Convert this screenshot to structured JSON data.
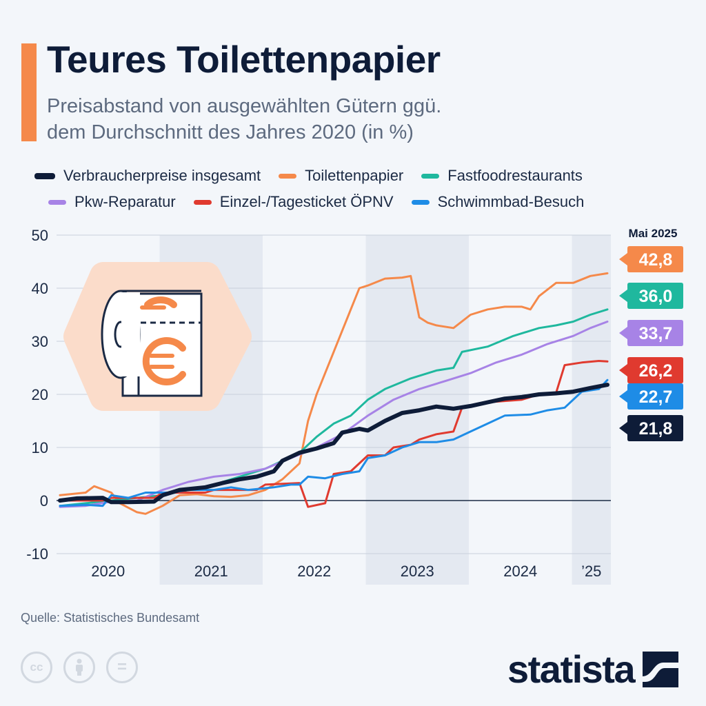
{
  "header": {
    "title": "Teures Toilettenpapier",
    "subtitle_line1": "Preisabstand von ausgewählten Gütern ggü.",
    "subtitle_line2": "dem Durchschnitt des Jahres 2020 (in %)"
  },
  "legend": [
    {
      "label": "Verbraucherpreise insgesamt",
      "color": "#0e1c38"
    },
    {
      "label": "Toilettenpapier",
      "color": "#f5894a"
    },
    {
      "label": "Fastfoodrestaurants",
      "color": "#1fb89e"
    },
    {
      "label": "Pkw-Reparatur",
      "color": "#a783e6"
    },
    {
      "label": "Einzel-/Tagesticket ÖPNV",
      "color": "#e03a2f"
    },
    {
      "label": "Schwimmbad-Besuch",
      "color": "#1e8ce6"
    }
  ],
  "end_label_header": "Mai 2025",
  "icons": {
    "illustration": "toilet-paper-euro-icon",
    "license": [
      "cc-icon",
      "attribution-icon",
      "no-derivatives-icon"
    ],
    "brand": "statista-logo"
  },
  "footer": {
    "source": "Quelle: Statistisches Bundesamt",
    "brand": "statista",
    "cc_labels": [
      "cc",
      "",
      "="
    ]
  },
  "chart_data": {
    "type": "line",
    "x_unit": "month",
    "x_start": "2020-01",
    "x_end": "2025-05",
    "x_tick_labels": [
      "2020",
      "2021",
      "2022",
      "2023",
      "2024",
      "’25"
    ],
    "ylim": [
      -10,
      50
    ],
    "y_ticks": [
      -10,
      0,
      10,
      20,
      30,
      40,
      50
    ],
    "y_tick_labels": [
      "-10",
      "0",
      "10",
      "20",
      "30",
      "40",
      "50"
    ],
    "ylabel": "",
    "xlabel": "",
    "shaded_years": [
      "2021",
      "2023",
      "2025"
    ],
    "series": [
      {
        "name": "Toilettenpapier",
        "color": "#f5894a",
        "end_label": "42,8",
        "points": [
          [
            "2020-01",
            1
          ],
          [
            "2020-04",
            1.5
          ],
          [
            "2020-05",
            2.7
          ],
          [
            "2020-07",
            1.5
          ],
          [
            "2020-08",
            -0.5
          ],
          [
            "2020-10",
            -2.2
          ],
          [
            "2020-11",
            -2.5
          ],
          [
            "2021-01",
            -1
          ],
          [
            "2021-03",
            1
          ],
          [
            "2021-05",
            1.2
          ],
          [
            "2021-07",
            0.8
          ],
          [
            "2021-09",
            0.7
          ],
          [
            "2021-11",
            1
          ],
          [
            "2022-01",
            2
          ],
          [
            "2022-03",
            4
          ],
          [
            "2022-05",
            7
          ],
          [
            "2022-06",
            15
          ],
          [
            "2022-07",
            20
          ],
          [
            "2022-08",
            24
          ],
          [
            "2022-09",
            28
          ],
          [
            "2022-10",
            32
          ],
          [
            "2022-12",
            40
          ],
          [
            "2023-01",
            40.5
          ],
          [
            "2023-03",
            41.8
          ],
          [
            "2023-05",
            42
          ],
          [
            "2023-06",
            42.3
          ],
          [
            "2023-07",
            34.5
          ],
          [
            "2023-08",
            33.5
          ],
          [
            "2023-09",
            33
          ],
          [
            "2023-11",
            32.5
          ],
          [
            "2024-01",
            35
          ],
          [
            "2024-03",
            36
          ],
          [
            "2024-05",
            36.5
          ],
          [
            "2024-07",
            36.5
          ],
          [
            "2024-08",
            36
          ],
          [
            "2024-09",
            38.5
          ],
          [
            "2024-11",
            41
          ],
          [
            "2025-01",
            41
          ],
          [
            "2025-03",
            42.3
          ],
          [
            "2025-05",
            42.8
          ]
        ]
      },
      {
        "name": "Fastfoodrestaurants",
        "color": "#1fb89e",
        "end_label": "36,0",
        "points": [
          [
            "2020-01",
            -1
          ],
          [
            "2020-04",
            -0.5
          ],
          [
            "2020-07",
            0
          ],
          [
            "2020-10",
            0.5
          ],
          [
            "2021-01",
            1
          ],
          [
            "2021-04",
            2
          ],
          [
            "2021-07",
            3
          ],
          [
            "2021-10",
            4.5
          ],
          [
            "2022-01",
            6
          ],
          [
            "2022-03",
            7.5
          ],
          [
            "2022-05",
            9
          ],
          [
            "2022-07",
            12
          ],
          [
            "2022-09",
            14.5
          ],
          [
            "2022-11",
            16
          ],
          [
            "2023-01",
            19
          ],
          [
            "2023-03",
            21
          ],
          [
            "2023-06",
            23
          ],
          [
            "2023-09",
            24.5
          ],
          [
            "2023-11",
            25
          ],
          [
            "2023-12",
            28
          ],
          [
            "2024-03",
            29
          ],
          [
            "2024-06",
            31
          ],
          [
            "2024-09",
            32.5
          ],
          [
            "2024-11",
            33
          ],
          [
            "2025-01",
            33.7
          ],
          [
            "2025-03",
            35
          ],
          [
            "2025-05",
            36
          ]
        ]
      },
      {
        "name": "Pkw-Reparatur",
        "color": "#a783e6",
        "end_label": "33,7",
        "points": [
          [
            "2020-01",
            -1.2
          ],
          [
            "2020-04",
            -1
          ],
          [
            "2020-07",
            -0.2
          ],
          [
            "2020-10",
            0
          ],
          [
            "2021-01",
            2
          ],
          [
            "2021-04",
            3.5
          ],
          [
            "2021-07",
            4.5
          ],
          [
            "2021-10",
            5
          ],
          [
            "2022-01",
            6
          ],
          [
            "2022-04",
            8
          ],
          [
            "2022-07",
            10
          ],
          [
            "2022-10",
            12.5
          ],
          [
            "2023-01",
            16
          ],
          [
            "2023-04",
            19
          ],
          [
            "2023-07",
            21
          ],
          [
            "2023-10",
            22.5
          ],
          [
            "2024-01",
            24
          ],
          [
            "2024-04",
            26
          ],
          [
            "2024-07",
            27.5
          ],
          [
            "2024-10",
            29.5
          ],
          [
            "2025-01",
            31
          ],
          [
            "2025-03",
            32.5
          ],
          [
            "2025-05",
            33.7
          ]
        ]
      },
      {
        "name": "Einzel-/Tagesticket ÖPNV",
        "color": "#e03a2f",
        "end_label": "26,2",
        "points": [
          [
            "2020-01",
            0
          ],
          [
            "2020-06",
            0
          ],
          [
            "2020-07",
            0.5
          ],
          [
            "2020-12",
            0.5
          ],
          [
            "2021-01",
            1.5
          ],
          [
            "2021-06",
            1.5
          ],
          [
            "2021-07",
            2
          ],
          [
            "2021-12",
            2
          ],
          [
            "2022-01",
            3
          ],
          [
            "2022-05",
            3.3
          ],
          [
            "2022-06",
            -1.2
          ],
          [
            "2022-08",
            -0.5
          ],
          [
            "2022-09",
            5
          ],
          [
            "2022-11",
            5.5
          ],
          [
            "2023-01",
            8.5
          ],
          [
            "2023-03",
            8.5
          ],
          [
            "2023-04",
            10
          ],
          [
            "2023-06",
            10.5
          ],
          [
            "2023-07",
            11.5
          ],
          [
            "2023-09",
            12.5
          ],
          [
            "2023-11",
            13
          ],
          [
            "2023-12",
            17.5
          ],
          [
            "2024-03",
            18.5
          ],
          [
            "2024-07",
            19
          ],
          [
            "2024-09",
            20
          ],
          [
            "2024-11",
            20.3
          ],
          [
            "2024-12",
            25.5
          ],
          [
            "2025-02",
            26
          ],
          [
            "2025-04",
            26.3
          ],
          [
            "2025-05",
            26.2
          ]
        ]
      },
      {
        "name": "Schwimmbad-Besuch",
        "color": "#1e8ce6",
        "end_label": "22,7",
        "points": [
          [
            "2020-01",
            -1
          ],
          [
            "2020-04",
            -0.8
          ],
          [
            "2020-06",
            -1
          ],
          [
            "2020-07",
            1
          ],
          [
            "2020-09",
            0.5
          ],
          [
            "2020-11",
            1.5
          ],
          [
            "2021-02",
            1.5
          ],
          [
            "2021-04",
            2
          ],
          [
            "2021-07",
            2
          ],
          [
            "2021-09",
            2.5
          ],
          [
            "2021-11",
            2
          ],
          [
            "2022-02",
            2.5
          ],
          [
            "2022-04",
            3
          ],
          [
            "2022-05",
            3
          ],
          [
            "2022-06",
            4.5
          ],
          [
            "2022-08",
            4.2
          ],
          [
            "2022-10",
            5
          ],
          [
            "2022-12",
            5.5
          ],
          [
            "2023-01",
            8
          ],
          [
            "2023-03",
            8.5
          ],
          [
            "2023-05",
            10
          ],
          [
            "2023-07",
            11
          ],
          [
            "2023-09",
            11
          ],
          [
            "2023-11",
            11.5
          ],
          [
            "2024-01",
            13
          ],
          [
            "2024-03",
            14.5
          ],
          [
            "2024-05",
            16
          ],
          [
            "2024-08",
            16.2
          ],
          [
            "2024-10",
            17
          ],
          [
            "2024-12",
            17.5
          ],
          [
            "2025-02",
            20.5
          ],
          [
            "2025-04",
            21
          ],
          [
            "2025-05",
            22.7
          ]
        ]
      },
      {
        "name": "Verbraucherpreise insgesamt",
        "color": "#0e1c38",
        "end_label": "21,8",
        "points": [
          [
            "2020-01",
            0
          ],
          [
            "2020-03",
            0.4
          ],
          [
            "2020-06",
            0.5
          ],
          [
            "2020-07",
            -0.3
          ],
          [
            "2020-09",
            -0.3
          ],
          [
            "2020-12",
            -0.2
          ],
          [
            "2021-01",
            1
          ],
          [
            "2021-03",
            2
          ],
          [
            "2021-06",
            2.5
          ],
          [
            "2021-08",
            3.3
          ],
          [
            "2021-10",
            4
          ],
          [
            "2021-12",
            4.5
          ],
          [
            "2022-02",
            5.5
          ],
          [
            "2022-03",
            7.5
          ],
          [
            "2022-05",
            9
          ],
          [
            "2022-07",
            9.8
          ],
          [
            "2022-09",
            10.8
          ],
          [
            "2022-10",
            12.8
          ],
          [
            "2022-12",
            13.5
          ],
          [
            "2023-01",
            13.2
          ],
          [
            "2023-03",
            15
          ],
          [
            "2023-05",
            16.5
          ],
          [
            "2023-07",
            17
          ],
          [
            "2023-09",
            17.7
          ],
          [
            "2023-11",
            17.3
          ],
          [
            "2024-01",
            17.8
          ],
          [
            "2024-03",
            18.5
          ],
          [
            "2024-05",
            19.2
          ],
          [
            "2024-07",
            19.5
          ],
          [
            "2024-09",
            20
          ],
          [
            "2024-11",
            20.2
          ],
          [
            "2025-01",
            20.5
          ],
          [
            "2025-03",
            21.2
          ],
          [
            "2025-05",
            21.8
          ]
        ]
      }
    ]
  }
}
